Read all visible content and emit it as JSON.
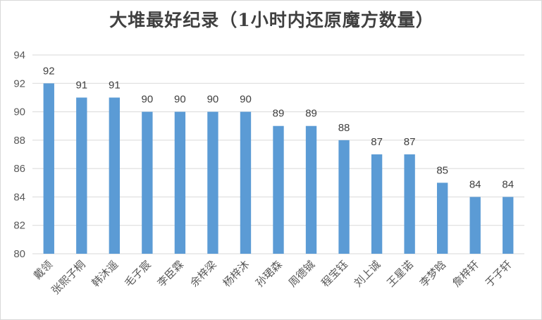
{
  "chart_data": {
    "type": "bar",
    "title": "大堆最好纪录（1小时内还原魔方数量）",
    "categories": [
      "戴领",
      "张熙子桐",
      "韩沐遥",
      "毛子宸",
      "李臣霖",
      "余梓梁",
      "杨梓沐",
      "孙珺森",
      "周德铖",
      "程宝钰",
      "刘上诚",
      "王星诺",
      "李梦晗",
      "詹梓轩",
      "于子轩"
    ],
    "values": [
      92,
      91,
      91,
      90,
      90,
      90,
      90,
      89,
      89,
      88,
      87,
      87,
      85,
      84,
      84
    ],
    "ylim": [
      80,
      94
    ],
    "yticks": [
      80,
      82,
      84,
      86,
      88,
      90,
      92,
      94
    ],
    "xlabel": "",
    "ylabel": "",
    "grid": true,
    "legend": false,
    "data_labels": true,
    "bar_color": "#5b9bd5",
    "grid_color": "#d9d9d9"
  }
}
